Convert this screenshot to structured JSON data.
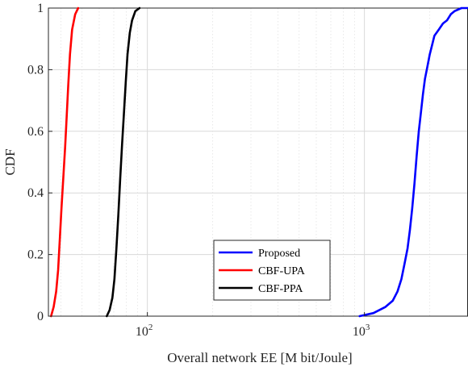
{
  "chart_data": {
    "type": "line",
    "xlabel": "Overall network EE [M bit/Joule]",
    "ylabel": "CDF",
    "xscale": "log",
    "xlim": [
      35,
      3000
    ],
    "ylim": [
      0,
      1
    ],
    "xticks": [
      {
        "value": 100,
        "base": "10",
        "exp": "2"
      },
      {
        "value": 1000,
        "base": "10",
        "exp": "3"
      }
    ],
    "yticks": [
      {
        "value": 0,
        "label": "0"
      },
      {
        "value": 0.2,
        "label": "0.2"
      },
      {
        "value": 0.4,
        "label": "0.4"
      },
      {
        "value": 0.6,
        "label": "0.6"
      },
      {
        "value": 0.8,
        "label": "0.8"
      },
      {
        "value": 1,
        "label": "1"
      }
    ],
    "grid": true,
    "legend_position": "bottom-center",
    "series": [
      {
        "name": "Proposed",
        "color": "#0000ff",
        "x": [
          950,
          1100,
          1250,
          1350,
          1420,
          1480,
          1530,
          1580,
          1620,
          1660,
          1700,
          1740,
          1780,
          1820,
          1860,
          1900,
          1950,
          2000,
          2050,
          2100,
          2200,
          2300,
          2400,
          2500,
          2600,
          2800,
          3000
        ],
        "y": [
          0.0,
          0.01,
          0.03,
          0.05,
          0.08,
          0.12,
          0.17,
          0.22,
          0.28,
          0.35,
          0.43,
          0.52,
          0.6,
          0.66,
          0.72,
          0.77,
          0.81,
          0.85,
          0.88,
          0.91,
          0.93,
          0.95,
          0.96,
          0.98,
          0.99,
          1.0,
          1.0
        ]
      },
      {
        "name": "CBF-UPA",
        "color": "#ff0000",
        "x": [
          36,
          37,
          38,
          38.8,
          39.5,
          40.2,
          41,
          41.8,
          42.5,
          43.2,
          44,
          45,
          46.5,
          48
        ],
        "y": [
          0.0,
          0.03,
          0.08,
          0.15,
          0.25,
          0.35,
          0.45,
          0.55,
          0.65,
          0.75,
          0.85,
          0.93,
          0.98,
          1.0
        ]
      },
      {
        "name": "CBF-PPA",
        "color": "#000000",
        "x": [
          65,
          67,
          69,
          70.5,
          72,
          73.5,
          75,
          76.5,
          78,
          79.5,
          81,
          83,
          85,
          88,
          92
        ],
        "y": [
          0.0,
          0.02,
          0.06,
          0.12,
          0.22,
          0.33,
          0.45,
          0.56,
          0.66,
          0.76,
          0.85,
          0.92,
          0.96,
          0.99,
          1.0
        ]
      }
    ]
  }
}
